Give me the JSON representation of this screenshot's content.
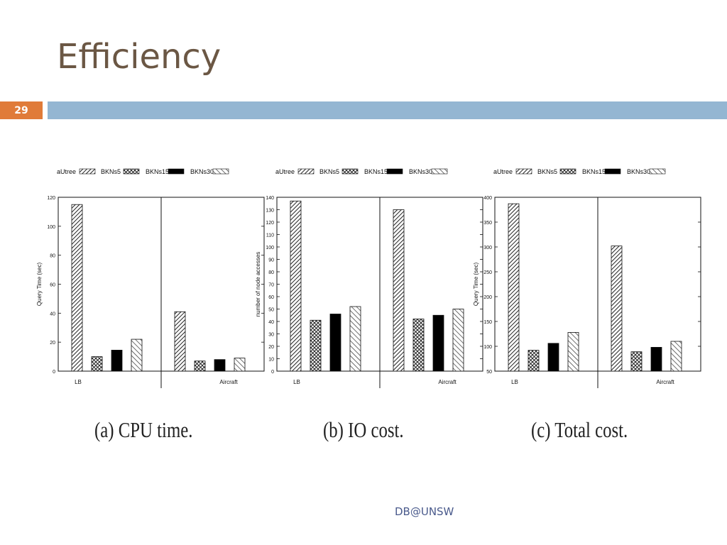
{
  "slide": {
    "title": "Efficiency",
    "page_number": "29",
    "footer": "DB@UNSW"
  },
  "colors": {
    "page_badge": "#e07b39",
    "title_bar": "#94b6d2",
    "title_text": "#6b5744",
    "footer_text": "#4a5a8c"
  },
  "legend": [
    "aUtree",
    "BKNs5",
    "BKNs15",
    "BKNs30"
  ],
  "chart_data": [
    {
      "type": "bar",
      "caption": "(a) CPU time.",
      "categories": [
        "LB",
        "Aircraft"
      ],
      "ylabel": "Query Time (sec)",
      "ylim": [
        0,
        120
      ],
      "yticks": [
        0,
        20,
        40,
        60,
        80,
        100,
        120
      ],
      "series": [
        {
          "name": "aUtree",
          "values": [
            115,
            41
          ],
          "pattern": "diag"
        },
        {
          "name": "BKNs5",
          "values": [
            10,
            7
          ],
          "pattern": "cross"
        },
        {
          "name": "BKNs15",
          "values": [
            14.5,
            8
          ],
          "pattern": "solid"
        },
        {
          "name": "BKNs30",
          "values": [
            22,
            9
          ],
          "pattern": "diag2"
        }
      ]
    },
    {
      "type": "bar",
      "caption": "(b) IO cost.",
      "categories": [
        "LB",
        "Aircraft"
      ],
      "ylabel": "number of node accesses",
      "ylim": [
        0,
        140
      ],
      "yticks": [
        0,
        10,
        20,
        30,
        40,
        50,
        60,
        70,
        80,
        90,
        100,
        110,
        120,
        130,
        140
      ],
      "series": [
        {
          "name": "aUtree",
          "values": [
            137,
            130
          ],
          "pattern": "diag"
        },
        {
          "name": "BKNs5",
          "values": [
            41,
            42
          ],
          "pattern": "cross"
        },
        {
          "name": "BKNs15",
          "values": [
            46,
            45
          ],
          "pattern": "solid"
        },
        {
          "name": "BKNs30",
          "values": [
            52,
            50
          ],
          "pattern": "diag2"
        }
      ]
    },
    {
      "type": "bar",
      "caption": "(c) Total cost.",
      "categories": [
        "LB",
        "Aircraft"
      ],
      "ylabel": "Query Time (sec)",
      "ylim": [
        50,
        400
      ],
      "yticks": [
        50,
        100,
        150,
        200,
        250,
        300,
        350,
        400
      ],
      "series": [
        {
          "name": "aUtree",
          "values": [
            387,
            302
          ],
          "pattern": "diag"
        },
        {
          "name": "BKNs5",
          "values": [
            92,
            89
          ],
          "pattern": "cross"
        },
        {
          "name": "BKNs15",
          "values": [
            106,
            98
          ],
          "pattern": "solid"
        },
        {
          "name": "BKNs30",
          "values": [
            128,
            110
          ],
          "pattern": "diag2"
        }
      ]
    }
  ]
}
